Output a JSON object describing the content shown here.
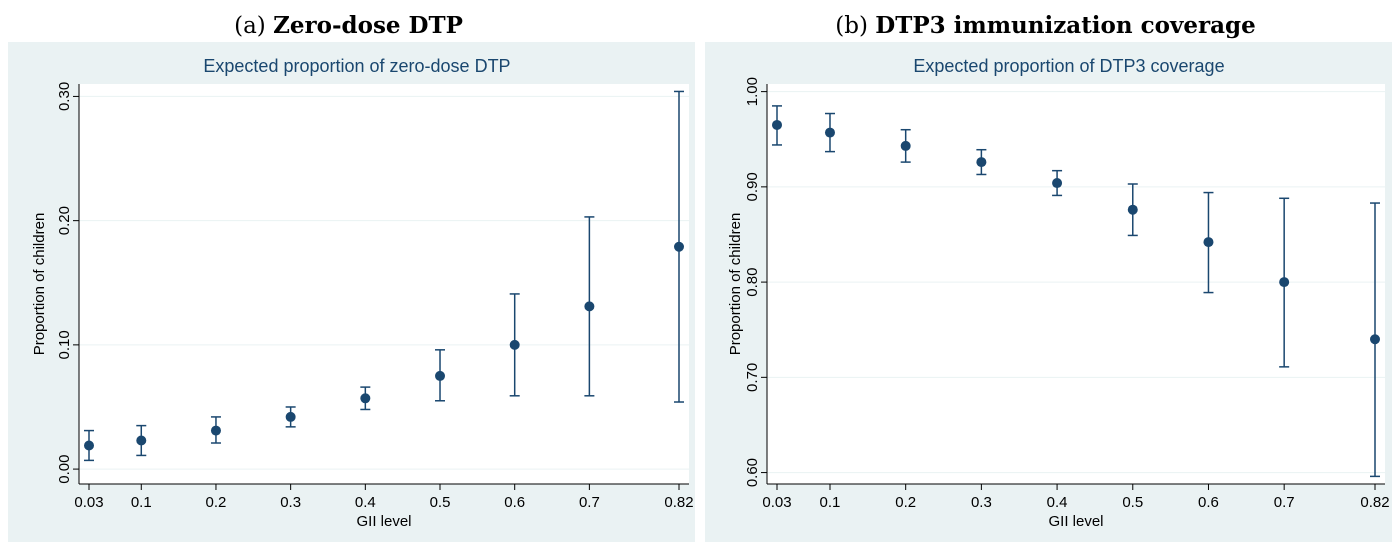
{
  "panels": [
    {
      "label": "(a)",
      "title": "Zero-dose DTP"
    },
    {
      "label": "(b)",
      "title": "DTP3 immunization coverage"
    }
  ],
  "colors": {
    "outer_bg": "#eaf2f3",
    "plot_bg": "#ffffff",
    "marker": "#1a476f",
    "grid": "#eaf2f3",
    "title": "#1a476f"
  },
  "chart_data": [
    {
      "type": "scatter",
      "title": "Expected proportion of zero-dose DTP",
      "xlabel": "GII level",
      "ylabel": "Proportion of children",
      "x_ticks": [
        "0.03",
        "0.1",
        "0.2",
        "0.3",
        "0.4",
        "0.5",
        "0.6",
        "0.7",
        "0.82"
      ],
      "y_ticks": [
        "0.00",
        "0.10",
        "0.20",
        "0.30"
      ],
      "ylim": [
        -0.012,
        0.31
      ],
      "grid": true,
      "series": [
        {
          "x": [
            0.03,
            0.1,
            0.2,
            0.3,
            0.4,
            0.5,
            0.6,
            0.7,
            0.82
          ],
          "y": [
            0.019,
            0.023,
            0.031,
            0.042,
            0.057,
            0.075,
            0.1,
            0.131,
            0.179
          ],
          "ci_low": [
            0.007,
            0.011,
            0.021,
            0.034,
            0.048,
            0.055,
            0.059,
            0.059,
            0.054
          ],
          "ci_high": [
            0.031,
            0.035,
            0.042,
            0.05,
            0.066,
            0.096,
            0.141,
            0.203,
            0.304
          ]
        }
      ]
    },
    {
      "type": "scatter",
      "title": "Expected proportion of DTP3 coverage",
      "xlabel": "GII level",
      "ylabel": "Proportion of children",
      "x_ticks": [
        "0.03",
        "0.1",
        "0.2",
        "0.3",
        "0.4",
        "0.5",
        "0.6",
        "0.7",
        "0.82"
      ],
      "y_ticks": [
        "0.60",
        "0.70",
        "0.80",
        "0.90",
        "1.00"
      ],
      "ylim": [
        0.588,
        1.008
      ],
      "grid": true,
      "series": [
        {
          "x": [
            0.03,
            0.1,
            0.2,
            0.3,
            0.4,
            0.5,
            0.6,
            0.7,
            0.82
          ],
          "y": [
            0.965,
            0.957,
            0.943,
            0.926,
            0.904,
            0.876,
            0.842,
            0.8,
            0.74
          ],
          "ci_low": [
            0.944,
            0.937,
            0.926,
            0.913,
            0.891,
            0.849,
            0.789,
            0.711,
            0.596
          ],
          "ci_high": [
            0.985,
            0.977,
            0.96,
            0.939,
            0.917,
            0.903,
            0.894,
            0.888,
            0.883
          ]
        }
      ]
    }
  ]
}
